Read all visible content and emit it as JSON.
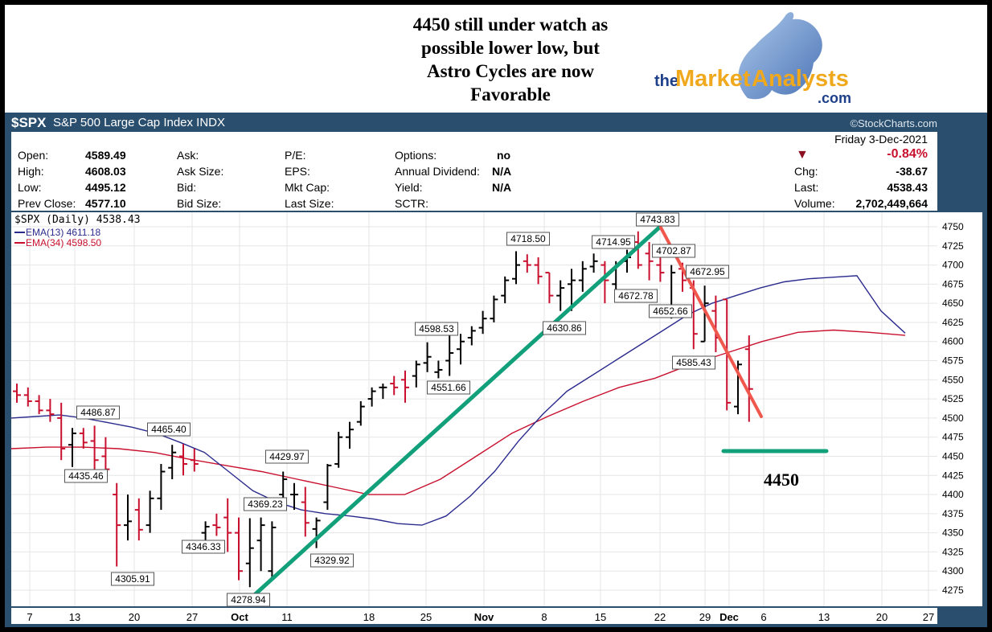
{
  "headline": [
    "4450 still under watch as",
    "possible lower low, but",
    "Astro Cycles are now",
    "Favorable"
  ],
  "logo": {
    "the": "the",
    "market": "Market",
    "analysts": "Analysts",
    "com": ".com"
  },
  "symbol": {
    "ticker": "$SPX",
    "name": "S&P 500 Large Cap Index INDX",
    "credit": "©StockCharts.com"
  },
  "info": {
    "date": "Friday  3-Dec-2021",
    "change_pct": "-0.84%",
    "open_label": "Open:",
    "open": "4589.49",
    "high_label": "High:",
    "high": "4608.03",
    "low_label": "Low:",
    "low": "4495.12",
    "prev_label": "Prev Close:",
    "prev": "4577.10",
    "ask_label": "Ask:",
    "asksize_label": "Ask Size:",
    "bid_label": "Bid:",
    "bidsize_label": "Bid Size:",
    "pe_label": "P/E:",
    "eps_label": "EPS:",
    "mktcap_label": "Mkt Cap:",
    "lastsize_label": "Last Size:",
    "options_label": "Options:",
    "options": "no",
    "div_label": "Annual Dividend:",
    "div": "N/A",
    "yield_label": "Yield:",
    "yield": "N/A",
    "sctr_label": "SCTR:",
    "chg_label": "Chg:",
    "chg": "-38.67",
    "last_label": "Last:",
    "last": "4538.43",
    "vol_label": "Volume:",
    "vol": "2,702,449,664"
  },
  "legend": {
    "price": "$SPX (Daily) 4538.43",
    "ema13": "EMA(13) 4611.18",
    "ema34": "EMA(34) 4598.50"
  },
  "colors": {
    "up": "#000000",
    "down": "#c8102e",
    "ema13": "#2b2b8e",
    "ema34": "#c8102e",
    "trend_up": "#12a07a",
    "trend_down": "#f0584e",
    "target": "#12a07a",
    "panel": "#2a4e6e"
  },
  "chart_data": {
    "type": "bar",
    "ylim": [
      4250,
      4760
    ],
    "y_ticks": [
      4275,
      4300,
      4325,
      4350,
      4375,
      4400,
      4425,
      4450,
      4475,
      4500,
      4525,
      4550,
      4575,
      4600,
      4625,
      4650,
      4675,
      4700,
      4725,
      4750
    ],
    "x_labels": [
      "7",
      "13",
      "20",
      "27",
      "Oct",
      "11",
      "18",
      "25",
      "Nov",
      "8",
      "15",
      "22",
      "29",
      "Dec",
      "6",
      "13",
      "20",
      "27"
    ],
    "bars": [
      {
        "o": 4535,
        "h": 4545,
        "l": 4520,
        "c": 4530
      },
      {
        "o": 4530,
        "h": 4540,
        "l": 4515,
        "c": 4522
      },
      {
        "o": 4522,
        "h": 4530,
        "l": 4505,
        "c": 4510
      },
      {
        "o": 4510,
        "h": 4525,
        "l": 4495,
        "c": 4505
      },
      {
        "o": 4500,
        "h": 4520,
        "l": 4445,
        "c": 4460
      },
      {
        "o": 4465,
        "h": 4487,
        "l": 4436,
        "c": 4480
      },
      {
        "o": 4480,
        "h": 4487,
        "l": 4460,
        "c": 4468
      },
      {
        "o": 4470,
        "h": 4490,
        "l": 4430,
        "c": 4445
      },
      {
        "o": 4450,
        "h": 4475,
        "l": 4425,
        "c": 4433
      },
      {
        "o": 4400,
        "h": 4415,
        "l": 4306,
        "c": 4360
      },
      {
        "o": 4360,
        "h": 4400,
        "l": 4340,
        "c": 4365
      },
      {
        "o": 4380,
        "h": 4395,
        "l": 4340,
        "c": 4354
      },
      {
        "o": 4360,
        "h": 4405,
        "l": 4350,
        "c": 4395
      },
      {
        "o": 4395,
        "h": 4440,
        "l": 4380,
        "c": 4430
      },
      {
        "o": 4435,
        "h": 4465,
        "l": 4420,
        "c": 4455
      },
      {
        "o": 4450,
        "h": 4466,
        "l": 4425,
        "c": 4440
      },
      {
        "o": 4445,
        "h": 4460,
        "l": 4430,
        "c": 4440
      },
      {
        "o": 4350,
        "h": 4365,
        "l": 4339,
        "c": 4358
      },
      {
        "o": 4360,
        "h": 4375,
        "l": 4346,
        "c": 4357
      },
      {
        "o": 4370,
        "h": 4395,
        "l": 4325,
        "c": 4350
      },
      {
        "o": 4350,
        "h": 4370,
        "l": 4288,
        "c": 4300
      },
      {
        "o": 4310,
        "h": 4369,
        "l": 4279,
        "c": 4330
      },
      {
        "o": 4340,
        "h": 4370,
        "l": 4300,
        "c": 4360
      },
      {
        "o": 4300,
        "h": 4365,
        "l": 4290,
        "c": 4357
      },
      {
        "o": 4400,
        "h": 4430,
        "l": 4390,
        "c": 4420
      },
      {
        "o": 4400,
        "h": 4415,
        "l": 4380,
        "c": 4400
      },
      {
        "o": 4390,
        "h": 4410,
        "l": 4345,
        "c": 4363
      },
      {
        "o": 4355,
        "h": 4370,
        "l": 4330,
        "c": 4366
      },
      {
        "o": 4390,
        "h": 4440,
        "l": 4380,
        "c": 4438
      },
      {
        "o": 4440,
        "h": 4482,
        "l": 4435,
        "c": 4475
      },
      {
        "o": 4475,
        "h": 4495,
        "l": 4460,
        "c": 4485
      },
      {
        "o": 4495,
        "h": 4522,
        "l": 4490,
        "c": 4515
      },
      {
        "o": 4525,
        "h": 4540,
        "l": 4515,
        "c": 4535
      },
      {
        "o": 4540,
        "h": 4545,
        "l": 4525,
        "c": 4540
      },
      {
        "o": 4545,
        "h": 4555,
        "l": 4530,
        "c": 4540
      },
      {
        "o": 4550,
        "h": 4562,
        "l": 4520,
        "c": 4540
      },
      {
        "o": 4555,
        "h": 4575,
        "l": 4540,
        "c": 4570
      },
      {
        "o": 4572,
        "h": 4599,
        "l": 4560,
        "c": 4580
      },
      {
        "o": 4560,
        "h": 4575,
        "l": 4552,
        "c": 4563
      },
      {
        "o": 4575,
        "h": 4610,
        "l": 4555,
        "c": 4585
      },
      {
        "o": 4590,
        "h": 4610,
        "l": 4570,
        "c": 4600
      },
      {
        "o": 4605,
        "h": 4620,
        "l": 4595,
        "c": 4614
      },
      {
        "o": 4618,
        "h": 4640,
        "l": 4610,
        "c": 4630
      },
      {
        "o": 4630,
        "h": 4660,
        "l": 4625,
        "c": 4655
      },
      {
        "o": 4660,
        "h": 4685,
        "l": 4650,
        "c": 4680
      },
      {
        "o": 4682,
        "h": 4718,
        "l": 4675,
        "c": 4700
      },
      {
        "o": 4705,
        "h": 4714,
        "l": 4690,
        "c": 4700
      },
      {
        "o": 4700,
        "h": 4710,
        "l": 4675,
        "c": 4685
      },
      {
        "o": 4690,
        "h": 4690,
        "l": 4650,
        "c": 4660
      },
      {
        "o": 4660,
        "h": 4680,
        "l": 4640,
        "c": 4670
      },
      {
        "o": 4675,
        "h": 4695,
        "l": 4640,
        "c": 4680
      },
      {
        "o": 4680,
        "h": 4705,
        "l": 4665,
        "c": 4695
      },
      {
        "o": 4698,
        "h": 4715,
        "l": 4690,
        "c": 4705
      },
      {
        "o": 4700,
        "h": 4705,
        "l": 4650,
        "c": 4680
      },
      {
        "o": 4675,
        "h": 4705,
        "l": 4660,
        "c": 4700
      },
      {
        "o": 4705,
        "h": 4720,
        "l": 4690,
        "c": 4710
      },
      {
        "o": 4730,
        "h": 4744,
        "l": 4695,
        "c": 4700
      },
      {
        "o": 4715,
        "h": 4730,
        "l": 4680,
        "c": 4705
      },
      {
        "o": 4700,
        "h": 4718,
        "l": 4678,
        "c": 4690
      },
      {
        "o": 4640,
        "h": 4700,
        "l": 4630,
        "c": 4690
      },
      {
        "o": 4695,
        "h": 4703,
        "l": 4665,
        "c": 4680
      },
      {
        "o": 4670,
        "h": 4680,
        "l": 4590,
        "c": 4610
      },
      {
        "o": 4600,
        "h": 4673,
        "l": 4600,
        "c": 4650
      },
      {
        "o": 4640,
        "h": 4660,
        "l": 4586,
        "c": 4605
      },
      {
        "o": 4655,
        "h": 4655,
        "l": 4510,
        "c": 4520
      },
      {
        "o": 4515,
        "h": 4575,
        "l": 4505,
        "c": 4570
      },
      {
        "o": 4590,
        "h": 4608,
        "l": 4495,
        "c": 4538
      }
    ],
    "ema13": [
      4500,
      4502,
      4504,
      4500,
      4494,
      4488,
      4480,
      4468,
      4455,
      4430,
      4405,
      4390,
      4380,
      4375,
      4372,
      4368,
      4362,
      4360,
      4372,
      4398,
      4430,
      4470,
      4505,
      4535,
      4555,
      4575,
      4595,
      4615,
      4635,
      4650,
      4660,
      4670,
      4678,
      4682,
      4684,
      4686,
      4640,
      4611
    ],
    "ema34": [
      4460,
      4462,
      4462,
      4460,
      4455,
      4446,
      4438,
      4430,
      4420,
      4410,
      4400,
      4400,
      4420,
      4450,
      4480,
      4502,
      4522,
      4540,
      4552,
      4570,
      4585,
      4600,
      4612,
      4615,
      4612,
      4608
    ],
    "price_labels": [
      "4486.87",
      "4435.46",
      "4465.40",
      "4305.91",
      "4346.33",
      "4369.23",
      "4429.97",
      "4278.94",
      "4329.92",
      "4598.53",
      "4551.66",
      "4718.50",
      "4630.86",
      "4714.95",
      "4672.78",
      "4743.83",
      "4702.87",
      "4652.66",
      "4672.95",
      "4585.43"
    ],
    "annotation_label": "4450"
  }
}
